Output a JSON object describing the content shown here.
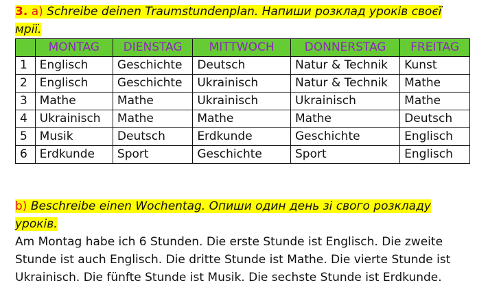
{
  "task_a": {
    "number": "3.",
    "letter": "a)",
    "text": "Schreibe deinen Traumstundenplan. Напиши розклад уроків своєї мрії."
  },
  "table": {
    "headers": [
      "",
      "MONTAG",
      "DIENSTAG",
      "MITTWOCH",
      "DONNERSTAG",
      "FREITAG"
    ],
    "rows": [
      [
        "1",
        "Englisch",
        "Geschichte",
        "Deutsch",
        "Natur & Technik",
        "Kunst"
      ],
      [
        "2",
        "Englisch",
        "Geschichte",
        "Ukrainisch",
        "Natur & Technik",
        "Mathe"
      ],
      [
        "3",
        "Mathe",
        "Mathe",
        "Ukrainisch",
        "Ukrainisch",
        "Mathe"
      ],
      [
        "4",
        "Ukrainisch",
        "Mathe",
        "Mathe",
        "Mathe",
        "Deutsch"
      ],
      [
        "5",
        "Musik",
        "Deutsch",
        "Erdkunde",
        "Geschichte",
        "Englisch"
      ],
      [
        "6",
        "Erdkunde",
        "Sport",
        "Geschichte",
        "Sport",
        "Englisch"
      ]
    ]
  },
  "task_b": {
    "letter": "b)",
    "text": "Beschreibe einen Wochentag. Опиши один день зі свого розкладу уроків."
  },
  "answer": "Am Montag habe ich 6 Stunden. Die erste Stunde ist Englisch. Die zweite Stunde ist auch Englisch. Die dritte Stunde ist Mathe. Die vierte Stunde ist Ukrainisch. Die fünfte Stunde ist Musik. Die sechste Stunde ist Erdkunde.",
  "colors": {
    "highlight": "#ffff00",
    "header_bg": "#66cc33",
    "header_text": "#8a2bb8",
    "task_label": "#e8141c"
  }
}
